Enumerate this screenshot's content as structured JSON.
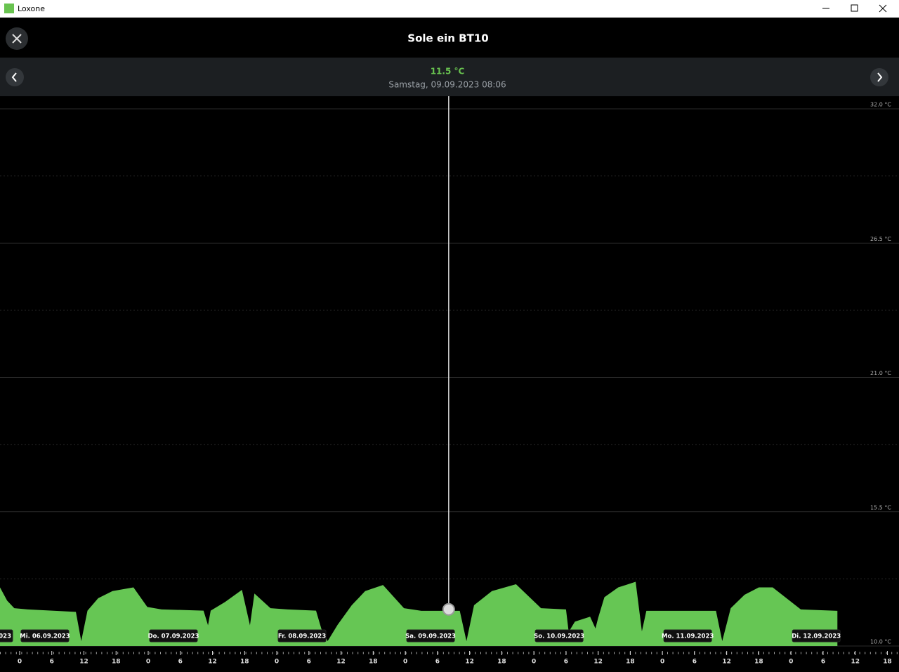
{
  "window": {
    "title": "Loxone"
  },
  "header": {
    "title": "Sole ein BT10"
  },
  "chart_data": {
    "type": "area",
    "cursor": {
      "value": 11.5,
      "value_label": "11.5 °C",
      "time": "09.09.2023 08:06",
      "time_label": "Samstag, 09.09.2023 08:06"
    },
    "x": [
      "05.09.2023 20:20",
      "05.09.2023 21:40",
      "05.09.2023 23:00",
      "06.09.2023 01:30",
      "06.09.2023 10:30",
      "06.09.2023 11:30",
      "06.09.2023 12:40",
      "06.09.2023 14:40",
      "06.09.2023 17:20",
      "06.09.2023 21:15",
      "06.09.2023 23:50",
      "07.09.2023 02:30",
      "07.09.2023 10:20",
      "07.09.2023 11:10",
      "07.09.2023 11:40",
      "07.09.2023 14:20",
      "07.09.2023 17:30",
      "07.09.2023 19:00",
      "07.09.2023 19:50",
      "07.09.2023 22:50",
      "08.09.2023 02:00",
      "08.09.2023 07:20",
      "08.09.2023 08:20",
      "08.09.2023 09:30",
      "08.09.2023 11:20",
      "08.09.2023 14:00",
      "08.09.2023 16:30",
      "08.09.2023 19:50",
      "08.09.2023 23:45",
      "09.09.2023 03:00",
      "09.09.2023 10:10",
      "09.09.2023 11:25",
      "09.09.2023 12:50",
      "09.09.2023 16:10",
      "09.09.2023 20:40",
      "10.09.2023 01:20",
      "10.09.2023 06:00",
      "10.09.2023 06:30",
      "10.09.2023 07:40",
      "10.09.2023 10:30",
      "10.09.2023 11:30",
      "10.09.2023 12:00",
      "10.09.2023 13:10",
      "10.09.2023 15:45",
      "10.09.2023 19:00",
      "10.09.2023 20:10",
      "10.09.2023 21:00",
      "11.09.2023 10:00",
      "11.09.2023 11:10",
      "11.09.2023 12:45",
      "11.09.2023 15:20",
      "11.09.2023 18:00",
      "11.09.2023 20:35",
      "12.09.2023 01:50",
      "12.09.2023 08:40"
    ],
    "series": [
      {
        "color": "#66c654",
        "values": [
          12.4,
          11.86,
          11.55,
          11.5,
          11.4,
          10.2,
          11.45,
          11.96,
          12.25,
          12.4,
          11.6,
          11.5,
          11.45,
          10.85,
          11.45,
          11.8,
          12.3,
          10.85,
          12.15,
          11.55,
          11.5,
          11.45,
          10.7,
          10.2,
          10.86,
          11.67,
          12.25,
          12.5,
          11.55,
          11.44,
          11.44,
          10.2,
          11.67,
          12.25,
          12.53,
          11.55,
          11.5,
          10.58,
          11.0,
          11.2,
          10.72,
          11.15,
          12.0,
          12.4,
          12.63,
          10.6,
          11.44,
          11.44,
          10.2,
          11.55,
          12.1,
          12.4,
          12.4,
          11.5,
          11.44
        ]
      }
    ],
    "xlim": [
      "05.09.2023 20:20",
      "12.09.2023 20:10"
    ],
    "ylim": [
      10,
      32
    ],
    "yticks": [
      {
        "value": 10,
        "label": "10.0 °C"
      },
      {
        "value": 15.5,
        "label": "15.5 °C"
      },
      {
        "value": 21,
        "label": "21.0 °C"
      },
      {
        "value": 26.5,
        "label": "26.5 °C"
      },
      {
        "value": 32,
        "label": "32.0 °C"
      }
    ],
    "minor_yticks": [
      12.75,
      18.25,
      23.75,
      29.25
    ],
    "xticks": [
      {
        "value": "06.09.2023 00:00",
        "label": "0"
      },
      {
        "value": "06.09.2023 06:00",
        "label": "6"
      },
      {
        "value": "06.09.2023 12:00",
        "label": "12"
      },
      {
        "value": "06.09.2023 18:00",
        "label": "18"
      },
      {
        "value": "07.09.2023 00:00",
        "label": "0"
      },
      {
        "value": "07.09.2023 06:00",
        "label": "6"
      },
      {
        "value": "07.09.2023 12:00",
        "label": "12"
      },
      {
        "value": "07.09.2023 18:00",
        "label": "18"
      },
      {
        "value": "08.09.2023 00:00",
        "label": "0"
      },
      {
        "value": "08.09.2023 06:00",
        "label": "6"
      },
      {
        "value": "08.09.2023 12:00",
        "label": "12"
      },
      {
        "value": "08.09.2023 18:00",
        "label": "18"
      },
      {
        "value": "09.09.2023 00:00",
        "label": "0"
      },
      {
        "value": "09.09.2023 06:00",
        "label": "6"
      },
      {
        "value": "09.09.2023 12:00",
        "label": "12"
      },
      {
        "value": "09.09.2023 18:00",
        "label": "18"
      },
      {
        "value": "10.09.2023 00:00",
        "label": "0"
      },
      {
        "value": "10.09.2023 06:00",
        "label": "6"
      },
      {
        "value": "10.09.2023 12:00",
        "label": "12"
      },
      {
        "value": "10.09.2023 18:00",
        "label": "18"
      },
      {
        "value": "11.09.2023 00:00",
        "label": "0"
      },
      {
        "value": "11.09.2023 06:00",
        "label": "6"
      },
      {
        "value": "11.09.2023 12:00",
        "label": "12"
      },
      {
        "value": "11.09.2023 18:00",
        "label": "18"
      },
      {
        "value": "12.09.2023 00:00",
        "label": "0"
      },
      {
        "value": "12.09.2023 06:00",
        "label": "6"
      },
      {
        "value": "12.09.2023 12:00",
        "label": "12"
      },
      {
        "value": "12.09.2023 18:00",
        "label": "18"
      }
    ],
    "day_labels": [
      "Mi. 06.09.2023",
      "Do. 07.09.2023",
      "Fr. 08.09.2023",
      "Sa. 09.09.2023",
      "So. 10.09.2023",
      "Mo. 11.09.2023",
      "Di. 12.09.2023"
    ],
    "cut_day_label": "023",
    "grid": true
  }
}
